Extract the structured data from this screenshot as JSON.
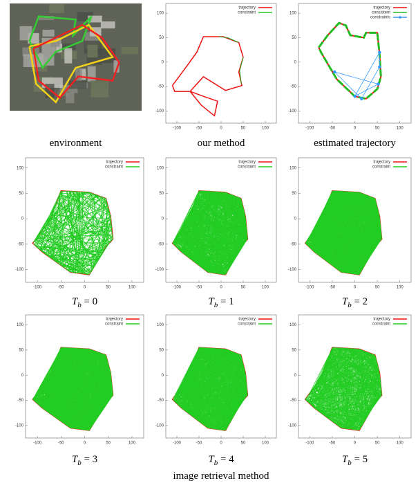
{
  "figure": {
    "panels": [
      {
        "caption": "environment"
      },
      {
        "caption": "our method",
        "legend": [
          "trajectory",
          "constraint"
        ],
        "xticks": [
          -100,
          -50,
          0,
          50,
          100
        ],
        "yticks": [
          100,
          50,
          0,
          -50,
          -100
        ]
      },
      {
        "caption": "estimated trajectory",
        "legend": [
          "trajectory",
          "consistent",
          "constraints"
        ],
        "xticks": [
          -100,
          -50,
          0,
          50,
          100
        ],
        "yticks": [
          100,
          50,
          0,
          -50,
          -100
        ]
      },
      {
        "caption": {
          "symbol": "T",
          "subscript": "b",
          "text": " = 0"
        },
        "legend": [
          "trajectory",
          "constraint"
        ],
        "xticks": [
          -100,
          -50,
          0,
          50,
          100
        ],
        "yticks": [
          100,
          50,
          0,
          -50,
          -100
        ]
      },
      {
        "caption": {
          "symbol": "T",
          "subscript": "b",
          "text": " = 1"
        },
        "legend": [
          "trajectory",
          "constraint"
        ],
        "xticks": [
          -100,
          -50,
          0,
          50,
          100
        ],
        "yticks": [
          100,
          50,
          0,
          -50,
          -100
        ]
      },
      {
        "caption": {
          "symbol": "T",
          "subscript": "b",
          "text": " = 2"
        },
        "legend": [
          "trajectory",
          "constraint"
        ],
        "xticks": [
          -100,
          -50,
          0,
          50,
          100
        ],
        "yticks": [
          100,
          50,
          0,
          -50,
          -100
        ]
      },
      {
        "caption": {
          "symbol": "T",
          "subscript": "b",
          "text": " = 3"
        },
        "legend": [
          "trajectory",
          "constraint"
        ],
        "xticks": [
          -100,
          -50,
          0,
          50,
          100
        ],
        "yticks": [
          100,
          50,
          0,
          -50,
          -100
        ]
      },
      {
        "caption": {
          "symbol": "T",
          "subscript": "b",
          "text": " = 4"
        },
        "legend": [
          "trajectory",
          "constraint"
        ],
        "xticks": [
          -100,
          -50,
          0,
          50,
          100
        ],
        "yticks": [
          100,
          50,
          0,
          -50,
          -100
        ]
      },
      {
        "caption": {
          "symbol": "T",
          "subscript": "b",
          "text": " = 5"
        },
        "legend": [
          "trajectory",
          "constraint"
        ],
        "xticks": [
          -100,
          -50,
          0,
          50,
          100
        ],
        "yticks": [
          100,
          50,
          0,
          -50,
          -100
        ]
      }
    ],
    "caption": "image retrieval method"
  }
}
